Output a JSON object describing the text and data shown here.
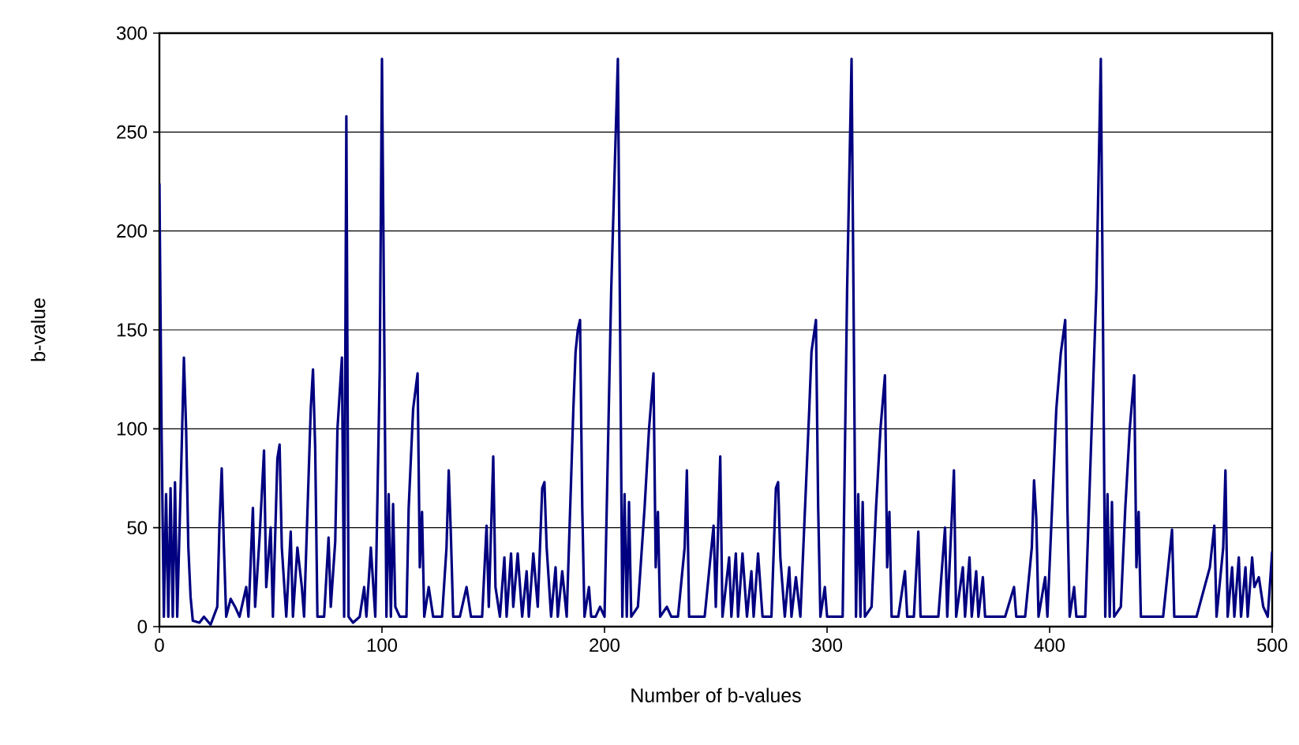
{
  "chart_data": {
    "type": "line",
    "xlabel": "Number of b-values",
    "ylabel": "b-value",
    "xlim": [
      0,
      500
    ],
    "ylim": [
      0,
      300
    ],
    "xticks": [
      0,
      100,
      200,
      300,
      400,
      500
    ],
    "yticks": [
      0,
      50,
      100,
      150,
      200,
      250,
      300
    ],
    "grid": "y",
    "marker": "none",
    "line_style": "solid",
    "x": [
      0,
      1,
      2,
      3,
      4,
      5,
      6,
      7,
      8,
      10,
      11,
      12,
      13,
      14,
      15,
      18,
      20,
      23,
      26,
      27,
      28,
      29,
      30,
      32,
      34,
      36,
      39,
      40,
      42,
      43,
      45,
      47,
      48,
      50,
      51,
      53,
      54,
      55,
      57,
      59,
      60,
      62,
      64,
      65,
      68,
      69,
      70,
      71,
      74,
      76,
      77,
      79,
      80,
      82,
      83,
      84,
      85,
      87,
      90,
      92,
      93,
      95,
      97,
      99,
      100,
      101,
      102,
      103,
      104,
      105,
      106,
      108,
      111,
      112,
      114,
      116,
      117,
      118,
      119,
      121,
      123,
      127,
      129,
      130,
      131,
      132,
      135,
      138,
      140,
      145,
      147,
      148,
      150,
      151,
      153,
      155,
      156,
      158,
      159,
      161,
      163,
      165,
      166,
      168,
      170,
      172,
      173,
      174,
      176,
      178,
      179,
      181,
      183,
      186,
      187,
      188,
      189,
      190,
      191,
      193,
      194,
      196,
      198,
      200,
      203,
      206,
      207,
      208,
      209,
      210,
      211,
      212,
      215,
      218,
      220,
      222,
      223,
      224,
      225,
      228,
      230,
      233,
      236,
      237,
      238,
      241,
      245,
      249,
      250,
      252,
      253,
      256,
      257,
      259,
      260,
      262,
      264,
      266,
      267,
      269,
      271,
      275,
      277,
      278,
      279,
      281,
      283,
      284,
      286,
      288,
      292,
      293,
      295,
      296,
      297,
      299,
      300,
      303,
      307,
      309,
      311,
      312,
      313,
      314,
      315,
      316,
      317,
      320,
      322,
      324,
      326,
      327,
      328,
      329,
      332,
      335,
      336,
      339,
      341,
      342,
      346,
      350,
      353,
      354,
      357,
      358,
      361,
      362,
      364,
      365,
      367,
      368,
      370,
      371,
      374,
      380,
      384,
      385,
      389,
      392,
      393,
      394,
      395,
      398,
      399,
      403,
      405,
      407,
      408,
      409,
      411,
      412,
      416,
      421,
      423,
      424,
      425,
      426,
      427,
      428,
      429,
      432,
      434,
      436,
      438,
      439,
      440,
      441,
      444,
      448,
      451,
      455,
      456,
      459,
      463,
      466,
      472,
      474,
      475,
      478,
      479,
      480,
      482,
      483,
      485,
      486,
      488,
      489,
      491,
      492,
      494,
      496,
      498,
      500
    ],
    "series": [
      {
        "color": "#000080",
        "values": [
          224,
          95,
          5,
          67,
          5,
          70,
          5,
          73,
          5,
          90,
          136,
          100,
          40,
          15,
          3,
          2,
          5,
          1,
          10,
          52,
          80,
          40,
          5,
          14,
          10,
          5,
          20,
          5,
          60,
          10,
          45,
          89,
          20,
          50,
          5,
          85,
          92,
          40,
          5,
          48,
          5,
          40,
          20,
          5,
          110,
          130,
          90,
          5,
          5,
          45,
          10,
          43,
          100,
          136,
          5,
          258,
          5,
          2,
          5,
          20,
          5,
          40,
          5,
          130,
          287,
          150,
          5,
          67,
          5,
          62,
          10,
          5,
          5,
          60,
          110,
          128,
          30,
          58,
          5,
          20,
          5,
          5,
          40,
          79,
          45,
          5,
          5,
          20,
          5,
          5,
          51,
          10,
          86,
          20,
          5,
          35,
          5,
          37,
          10,
          37,
          5,
          28,
          5,
          37,
          10,
          70,
          73,
          40,
          5,
          30,
          5,
          28,
          5,
          110,
          139,
          150,
          155,
          60,
          5,
          20,
          5,
          5,
          10,
          5,
          170,
          287,
          150,
          5,
          67,
          5,
          63,
          5,
          10,
          60,
          100,
          128,
          30,
          58,
          5,
          10,
          5,
          5,
          40,
          79,
          5,
          5,
          5,
          51,
          10,
          86,
          5,
          35,
          5,
          37,
          5,
          37,
          5,
          28,
          5,
          37,
          5,
          5,
          70,
          73,
          35,
          5,
          30,
          5,
          25,
          5,
          110,
          139,
          155,
          60,
          5,
          20,
          5,
          5,
          5,
          170,
          287,
          150,
          5,
          67,
          5,
          63,
          5,
          10,
          60,
          100,
          127,
          30,
          58,
          5,
          5,
          28,
          5,
          5,
          48,
          5,
          5,
          5,
          50,
          5,
          79,
          5,
          30,
          5,
          35,
          5,
          28,
          5,
          25,
          5,
          5,
          5,
          20,
          5,
          5,
          40,
          74,
          55,
          5,
          25,
          5,
          110,
          138,
          155,
          60,
          5,
          20,
          5,
          5,
          170,
          287,
          150,
          5,
          67,
          5,
          63,
          5,
          10,
          60,
          100,
          127,
          30,
          58,
          5,
          5,
          5,
          5,
          49,
          5,
          5,
          5,
          5,
          30,
          51,
          5,
          40,
          79,
          5,
          30,
          5,
          35,
          5,
          30,
          5,
          35,
          20,
          25,
          10,
          5,
          38
        ]
      }
    ]
  }
}
